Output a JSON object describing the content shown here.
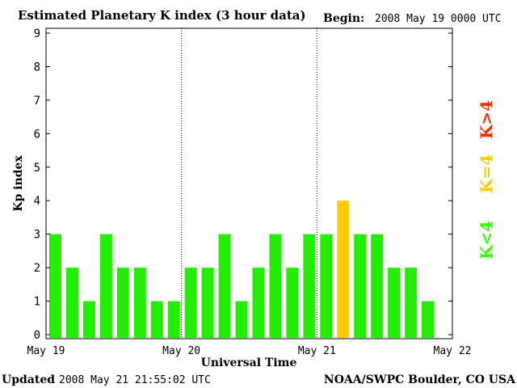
{
  "header": {
    "title": "Estimated Planetary K index (3 hour data)",
    "begin_label": "Begin:",
    "begin_value": "2008 May 19 0000 UTC"
  },
  "footer": {
    "updated_label": "Updated",
    "updated_value": "2008 May 21 21:55:02 UTC",
    "credit": "NOAA/SWPC Boulder, CO USA"
  },
  "chart_data": {
    "type": "bar",
    "title": "Estimated Planetary K index (3 hour data)",
    "xlabel": "Universal Time",
    "ylabel": "Kp index",
    "ylim": [
      0,
      9
    ],
    "yticks": [
      "0",
      "1",
      "2",
      "3",
      "4",
      "5",
      "6",
      "7",
      "8",
      "9"
    ],
    "x_tick_labels": [
      "May 19",
      "May 20",
      "May 21",
      "May 22"
    ],
    "intervals_per_day": 8,
    "values": [
      3,
      2,
      1,
      3,
      2,
      2,
      1,
      1,
      2,
      2,
      3,
      1,
      2,
      3,
      2,
      3,
      3,
      4,
      3,
      3,
      2,
      2,
      1
    ],
    "grid": "dotted vertical lines at day boundaries",
    "legend": [
      {
        "label": "K<4",
        "color": "#33ff00"
      },
      {
        "label": "K=4",
        "color": "#ffcc00"
      },
      {
        "label": "K>4",
        "color": "#ff2a00"
      }
    ],
    "colors": {
      "low": "#22ee00",
      "equal": "#ffcc00",
      "high": "#ff2200"
    }
  }
}
